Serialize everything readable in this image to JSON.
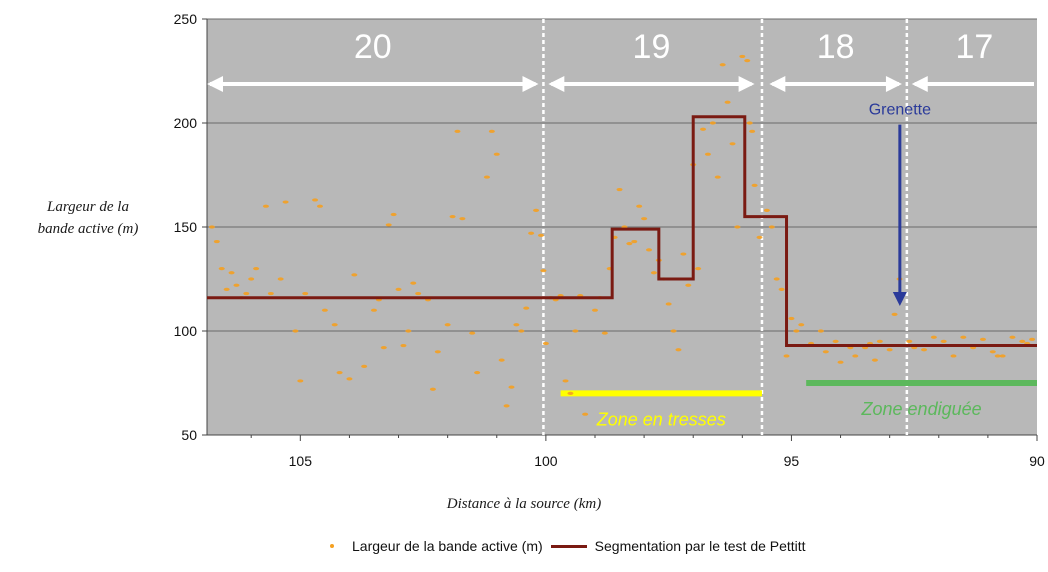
{
  "chart_data": {
    "type": "scatter",
    "ylabel_line1": "Largeur de la",
    "ylabel_line2": "bande active (m)",
    "xlabel": "Distance à la source (km)",
    "xlim": [
      106.9,
      90
    ],
    "ylim": [
      50,
      250
    ],
    "x_ticks": [
      105,
      100,
      95,
      90
    ],
    "y_ticks": [
      50,
      100,
      150,
      200,
      250
    ],
    "grid": true,
    "background_color": "#b8b8b8",
    "segments": [
      {
        "label": "20",
        "start": 106.9,
        "end": 100.15
      },
      {
        "label": "19",
        "start": 99.95,
        "end": 95.75
      },
      {
        "label": "18",
        "start": 95.45,
        "end": 92.75
      },
      {
        "label": "17",
        "start": 92.55,
        "end": 90.0
      }
    ],
    "segment_boundaries": [
      100.05,
      95.6,
      92.65
    ],
    "pettitt_steps": [
      {
        "x_start": 106.9,
        "x_end": 98.65,
        "y": 116
      },
      {
        "x_start": 98.65,
        "x_end": 97.7,
        "y": 149
      },
      {
        "x_start": 97.7,
        "x_end": 97.0,
        "y": 125
      },
      {
        "x_start": 97.0,
        "x_end": 95.95,
        "y": 203
      },
      {
        "x_start": 95.95,
        "x_end": 95.1,
        "y": 155
      },
      {
        "x_start": 95.1,
        "x_end": 90.0,
        "y": 93
      }
    ],
    "annotations": [
      {
        "text": "Grenette",
        "x": 92.65,
        "y": 204,
        "arrow_to_y": 112,
        "color": "#2a3a9a"
      },
      {
        "text": "Zone en tresses",
        "x_start": 99.7,
        "x_end": 95.6,
        "y": 70,
        "color": "#ffff00"
      },
      {
        "text": "Zone endiguée",
        "x_start": 94.7,
        "x_end": 90.0,
        "y": 75,
        "color": "#5cb85c"
      }
    ],
    "series": [
      {
        "name": "Largeur de la bande active (m)",
        "kind": "points",
        "color": "#f5a020"
      },
      {
        "name": "Segmentation par le test de Pettitt",
        "kind": "line",
        "color": "#7a1a12"
      }
    ],
    "points": [
      [
        106.8,
        150
      ],
      [
        106.7,
        143
      ],
      [
        106.6,
        130
      ],
      [
        106.5,
        120
      ],
      [
        106.4,
        128
      ],
      [
        106.3,
        122
      ],
      [
        106.2,
        116
      ],
      [
        106.1,
        118
      ],
      [
        106.0,
        125
      ],
      [
        105.9,
        130
      ],
      [
        105.7,
        160
      ],
      [
        105.6,
        118
      ],
      [
        105.4,
        125
      ],
      [
        105.3,
        162
      ],
      [
        105.1,
        100
      ],
      [
        105.0,
        76
      ],
      [
        104.9,
        118
      ],
      [
        104.7,
        163
      ],
      [
        104.6,
        160
      ],
      [
        104.5,
        110
      ],
      [
        104.3,
        103
      ],
      [
        104.2,
        80
      ],
      [
        104.0,
        77
      ],
      [
        103.9,
        127
      ],
      [
        103.7,
        83
      ],
      [
        103.5,
        110
      ],
      [
        103.4,
        115
      ],
      [
        103.3,
        92
      ],
      [
        103.2,
        151
      ],
      [
        103.1,
        156
      ],
      [
        103.0,
        120
      ],
      [
        102.9,
        93
      ],
      [
        102.8,
        100
      ],
      [
        102.7,
        123
      ],
      [
        102.6,
        118
      ],
      [
        102.4,
        115
      ],
      [
        102.3,
        72
      ],
      [
        102.2,
        90
      ],
      [
        102.0,
        103
      ],
      [
        101.9,
        155
      ],
      [
        101.8,
        196
      ],
      [
        101.7,
        154
      ],
      [
        101.5,
        99
      ],
      [
        101.4,
        80
      ],
      [
        101.2,
        174
      ],
      [
        101.1,
        196
      ],
      [
        101.0,
        185
      ],
      [
        100.9,
        86
      ],
      [
        100.8,
        64
      ],
      [
        100.7,
        73
      ],
      [
        100.6,
        103
      ],
      [
        100.5,
        100
      ],
      [
        100.4,
        111
      ],
      [
        100.3,
        147
      ],
      [
        100.2,
        158
      ],
      [
        100.1,
        146
      ],
      [
        100.05,
        129
      ],
      [
        100.0,
        94
      ],
      [
        99.9,
        116
      ],
      [
        99.8,
        115
      ],
      [
        99.7,
        117
      ],
      [
        99.6,
        76
      ],
      [
        99.5,
        70
      ],
      [
        99.4,
        100
      ],
      [
        99.3,
        117
      ],
      [
        99.2,
        60
      ],
      [
        99.0,
        110
      ],
      [
        98.9,
        116
      ],
      [
        98.8,
        99
      ],
      [
        98.7,
        130
      ],
      [
        98.6,
        145
      ],
      [
        98.5,
        168
      ],
      [
        98.4,
        150
      ],
      [
        98.3,
        142
      ],
      [
        98.2,
        143
      ],
      [
        98.1,
        160
      ],
      [
        98.0,
        154
      ],
      [
        97.9,
        139
      ],
      [
        97.8,
        128
      ],
      [
        97.7,
        134
      ],
      [
        97.6,
        125
      ],
      [
        97.5,
        113
      ],
      [
        97.4,
        100
      ],
      [
        97.3,
        91
      ],
      [
        97.2,
        137
      ],
      [
        97.1,
        122
      ],
      [
        97.0,
        180
      ],
      [
        96.9,
        130
      ],
      [
        96.8,
        197
      ],
      [
        96.7,
        185
      ],
      [
        96.6,
        200
      ],
      [
        96.5,
        174
      ],
      [
        96.4,
        228
      ],
      [
        96.3,
        210
      ],
      [
        96.2,
        190
      ],
      [
        96.1,
        150
      ],
      [
        96.0,
        232
      ],
      [
        95.9,
        230
      ],
      [
        95.85,
        200
      ],
      [
        95.8,
        196
      ],
      [
        95.75,
        170
      ],
      [
        95.65,
        145
      ],
      [
        95.5,
        158
      ],
      [
        95.4,
        150
      ],
      [
        95.3,
        125
      ],
      [
        95.2,
        120
      ],
      [
        95.1,
        88
      ],
      [
        95.0,
        106
      ],
      [
        94.9,
        100
      ],
      [
        94.8,
        103
      ],
      [
        94.6,
        94
      ],
      [
        94.4,
        100
      ],
      [
        94.3,
        90
      ],
      [
        94.1,
        95
      ],
      [
        94.0,
        85
      ],
      [
        93.8,
        92
      ],
      [
        93.7,
        88
      ],
      [
        93.5,
        92
      ],
      [
        93.4,
        94
      ],
      [
        93.3,
        86
      ],
      [
        93.2,
        95
      ],
      [
        93.0,
        91
      ],
      [
        92.9,
        108
      ],
      [
        92.8,
        125
      ],
      [
        92.6,
        95
      ],
      [
        92.5,
        92
      ],
      [
        92.3,
        91
      ],
      [
        92.1,
        97
      ],
      [
        91.9,
        95
      ],
      [
        91.7,
        88
      ],
      [
        91.5,
        97
      ],
      [
        91.3,
        92
      ],
      [
        91.1,
        96
      ],
      [
        90.9,
        90
      ],
      [
        90.8,
        88
      ],
      [
        90.7,
        88
      ],
      [
        90.5,
        97
      ],
      [
        90.3,
        95
      ],
      [
        90.2,
        94
      ],
      [
        90.1,
        96
      ]
    ],
    "legend_position": "bottom"
  }
}
